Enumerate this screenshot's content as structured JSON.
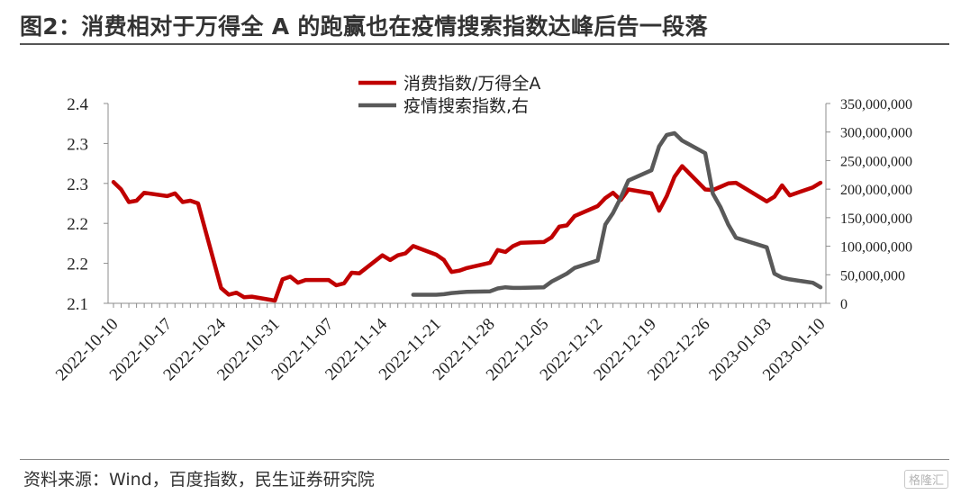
{
  "figure": {
    "title": "图2：消费相对于万得全 A 的跑赢也在疫情搜索指数达峰后告一段落",
    "source": "资料来源：Wind，百度指数，民生证券研究院",
    "watermark": "格隆汇"
  },
  "chart_data": {
    "type": "line",
    "grid": false,
    "legend_placement": "top-center",
    "x_ticks": [
      "2022-10-10",
      "2022-10-17",
      "2022-10-24",
      "2022-10-31",
      "2022-11-07",
      "2022-11-14",
      "2022-11-21",
      "2022-11-28",
      "2022-12-05",
      "2022-12-12",
      "2022-12-19",
      "2022-12-26",
      "2023-01-03",
      "2023-01-10"
    ],
    "x_range": [
      "2022-10-10",
      "2023-01-10"
    ],
    "y_left": {
      "ticks": [
        "2.1",
        "2.2",
        "2.2",
        "2.3",
        "2.3",
        "2.4"
      ],
      "range": [
        2.1,
        2.4
      ]
    },
    "y_right": {
      "ticks": [
        "0",
        "50,000,000",
        "100,000,000",
        "150,000,000",
        "200,000,000",
        "250,000,000",
        "300,000,000",
        "350,000,000"
      ],
      "range": [
        0,
        350000000
      ]
    },
    "series": [
      {
        "name": "消费指数/万得全A",
        "axis": "left",
        "color": "#c00000",
        "points": [
          [
            "2022-10-10",
            2.282
          ],
          [
            "2022-10-11",
            2.271
          ],
          [
            "2022-10-12",
            2.252
          ],
          [
            "2022-10-13",
            2.254
          ],
          [
            "2022-10-14",
            2.266
          ],
          [
            "2022-10-17",
            2.261
          ],
          [
            "2022-10-18",
            2.265
          ],
          [
            "2022-10-19",
            2.252
          ],
          [
            "2022-10-20",
            2.254
          ],
          [
            "2022-10-21",
            2.25
          ],
          [
            "2022-10-24",
            2.123
          ],
          [
            "2022-10-25",
            2.113
          ],
          [
            "2022-10-26",
            2.116
          ],
          [
            "2022-10-27",
            2.109
          ],
          [
            "2022-10-28",
            2.11
          ],
          [
            "2022-10-31",
            2.104
          ],
          [
            "2022-11-01",
            2.136
          ],
          [
            "2022-11-02",
            2.14
          ],
          [
            "2022-11-03",
            2.131
          ],
          [
            "2022-11-04",
            2.135
          ],
          [
            "2022-11-07",
            2.135
          ],
          [
            "2022-11-08",
            2.127
          ],
          [
            "2022-11-09",
            2.13
          ],
          [
            "2022-11-10",
            2.146
          ],
          [
            "2022-11-11",
            2.145
          ],
          [
            "2022-11-14",
            2.172
          ],
          [
            "2022-11-15",
            2.165
          ],
          [
            "2022-11-16",
            2.172
          ],
          [
            "2022-11-17",
            2.175
          ],
          [
            "2022-11-18",
            2.186
          ],
          [
            "2022-11-21",
            2.173
          ],
          [
            "2022-11-22",
            2.165
          ],
          [
            "2022-11-23",
            2.147
          ],
          [
            "2022-11-24",
            2.149
          ],
          [
            "2022-11-25",
            2.153
          ],
          [
            "2022-11-28",
            2.161
          ],
          [
            "2022-11-29",
            2.18
          ],
          [
            "2022-11-30",
            2.177
          ],
          [
            "2022-12-01",
            2.186
          ],
          [
            "2022-12-02",
            2.191
          ],
          [
            "2022-12-05",
            2.192
          ],
          [
            "2022-12-06",
            2.199
          ],
          [
            "2022-12-07",
            2.215
          ],
          [
            "2022-12-08",
            2.217
          ],
          [
            "2022-12-09",
            2.231
          ],
          [
            "2022-12-12",
            2.246
          ],
          [
            "2022-12-13",
            2.258
          ],
          [
            "2022-12-14",
            2.266
          ],
          [
            "2022-12-15",
            2.255
          ],
          [
            "2022-12-16",
            2.271
          ],
          [
            "2022-12-19",
            2.265
          ],
          [
            "2022-12-20",
            2.239
          ],
          [
            "2022-12-21",
            2.261
          ],
          [
            "2022-12-22",
            2.29
          ],
          [
            "2022-12-23",
            2.306
          ],
          [
            "2022-12-26",
            2.271
          ],
          [
            "2022-12-27",
            2.27
          ],
          [
            "2022-12-28",
            2.275
          ],
          [
            "2022-12-29",
            2.28
          ],
          [
            "2022-12-30",
            2.281
          ],
          [
            "2023-01-03",
            2.253
          ],
          [
            "2023-01-04",
            2.26
          ],
          [
            "2023-01-05",
            2.277
          ],
          [
            "2023-01-06",
            2.262
          ],
          [
            "2023-01-09",
            2.274
          ],
          [
            "2023-01-10",
            2.281
          ]
        ]
      },
      {
        "name": "疫情搜索指数,右",
        "axis": "right",
        "color": "#595959",
        "points": [
          [
            "2022-11-18",
            15000000
          ],
          [
            "2022-11-21",
            15000000
          ],
          [
            "2022-11-22",
            16000000
          ],
          [
            "2022-11-23",
            18000000
          ],
          [
            "2022-11-24",
            19000000
          ],
          [
            "2022-11-25",
            20000000
          ],
          [
            "2022-11-28",
            21000000
          ],
          [
            "2022-11-29",
            26000000
          ],
          [
            "2022-11-30",
            28000000
          ],
          [
            "2022-12-01",
            27000000
          ],
          [
            "2022-12-02",
            27000000
          ],
          [
            "2022-12-05",
            28000000
          ],
          [
            "2022-12-06",
            38000000
          ],
          [
            "2022-12-07",
            45000000
          ],
          [
            "2022-12-08",
            52000000
          ],
          [
            "2022-12-09",
            62000000
          ],
          [
            "2022-12-12",
            75000000
          ],
          [
            "2022-12-13",
            138000000
          ],
          [
            "2022-12-14",
            158000000
          ],
          [
            "2022-12-15",
            185000000
          ],
          [
            "2022-12-16",
            215000000
          ],
          [
            "2022-12-19",
            233000000
          ],
          [
            "2022-12-20",
            275000000
          ],
          [
            "2022-12-21",
            295000000
          ],
          [
            "2022-12-22",
            298000000
          ],
          [
            "2022-12-23",
            285000000
          ],
          [
            "2022-12-26",
            263000000
          ],
          [
            "2022-12-27",
            192000000
          ],
          [
            "2022-12-28",
            168000000
          ],
          [
            "2022-12-29",
            138000000
          ],
          [
            "2022-12-30",
            115000000
          ],
          [
            "2023-01-03",
            98000000
          ],
          [
            "2023-01-04",
            52000000
          ],
          [
            "2023-01-05",
            45000000
          ],
          [
            "2023-01-06",
            42000000
          ],
          [
            "2023-01-09",
            36000000
          ],
          [
            "2023-01-10",
            28000000
          ]
        ]
      }
    ]
  }
}
